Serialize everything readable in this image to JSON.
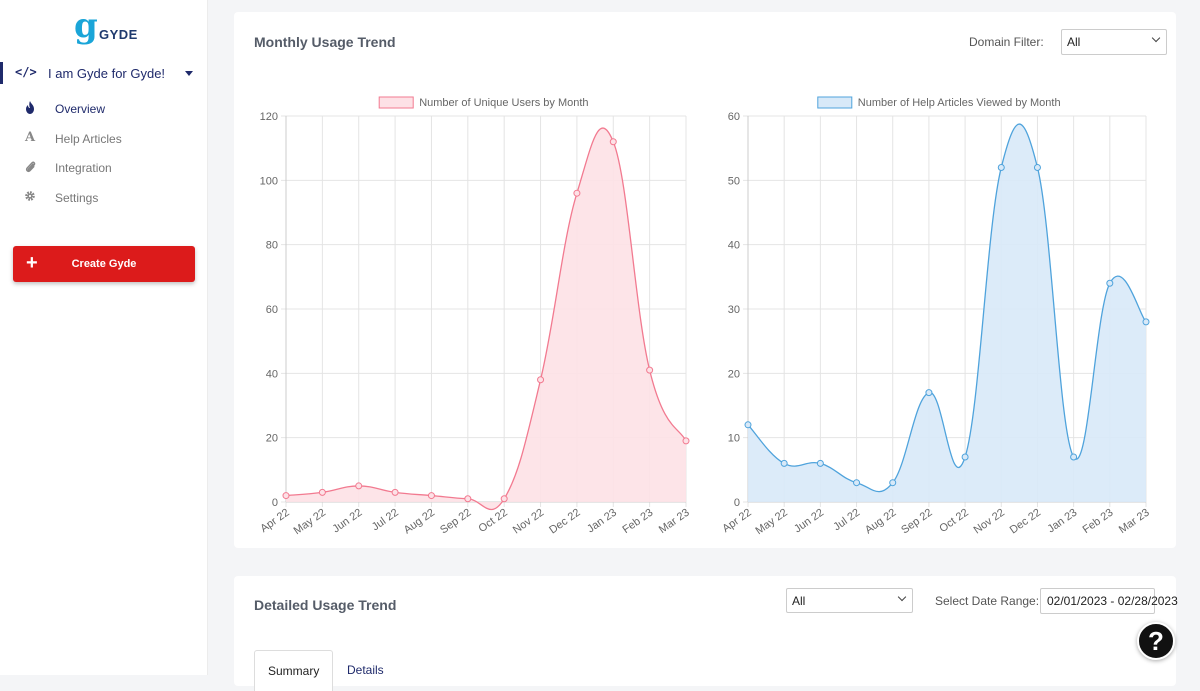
{
  "sidebar": {
    "logo_text": "GYDE",
    "project_icon": "</>",
    "project_name": "I am Gyde for Gyde!",
    "items": [
      {
        "label": "Overview",
        "icon": "fire-icon"
      },
      {
        "label": "Help Articles",
        "icon": "font-icon"
      },
      {
        "label": "Integration",
        "icon": "paperclip-icon"
      },
      {
        "label": "Settings",
        "icon": "gear-icon"
      }
    ],
    "create_label": "Create Gyde"
  },
  "usage": {
    "title": "Monthly Usage Trend",
    "filter_label": "Domain Filter:",
    "filter_value": "All"
  },
  "detailed": {
    "title": "Detailed Usage Trend",
    "filter_value": "All",
    "date_label": "Select Date Range:",
    "date_value": "02/01/2023 - 02/28/2023",
    "tabs": [
      "Summary",
      "Details"
    ]
  },
  "help_label": "?",
  "colors": {
    "accent": "#1f2a6b",
    "create": "#dc1b1b",
    "users_line": "#f27a90",
    "users_fill": "#fde1e6",
    "articles_line": "#4fa3dc",
    "articles_fill": "#d8e9f8"
  },
  "chart_data": [
    {
      "type": "area",
      "title": "",
      "legend": "top",
      "categories": [
        "Apr 22",
        "May 22",
        "Jun 22",
        "Jul 22",
        "Aug 22",
        "Sep 22",
        "Oct 22",
        "Nov 22",
        "Dec 22",
        "Jan 23",
        "Feb 23",
        "Mar 23"
      ],
      "series": [
        {
          "name": "Number of Unique Users by Month",
          "values": [
            2,
            3,
            5,
            3,
            2,
            1,
            1,
            38,
            96,
            112,
            41,
            19
          ]
        }
      ],
      "ylim": [
        0,
        120
      ],
      "yticks": [
        0,
        20,
        40,
        60,
        80,
        100,
        120
      ],
      "grid": true
    },
    {
      "type": "area",
      "title": "",
      "legend": "top",
      "categories": [
        "Apr 22",
        "May 22",
        "Jun 22",
        "Jul 22",
        "Aug 22",
        "Sep 22",
        "Oct 22",
        "Nov 22",
        "Dec 22",
        "Jan 23",
        "Feb 23",
        "Mar 23"
      ],
      "series": [
        {
          "name": "Number of Help Articles Viewed by Month",
          "values": [
            12,
            6,
            6,
            3,
            3,
            17,
            7,
            52,
            52,
            7,
            34,
            28
          ]
        }
      ],
      "ylim": [
        0,
        60
      ],
      "yticks": [
        0,
        10,
        20,
        30,
        40,
        50,
        60
      ],
      "grid": true
    }
  ]
}
